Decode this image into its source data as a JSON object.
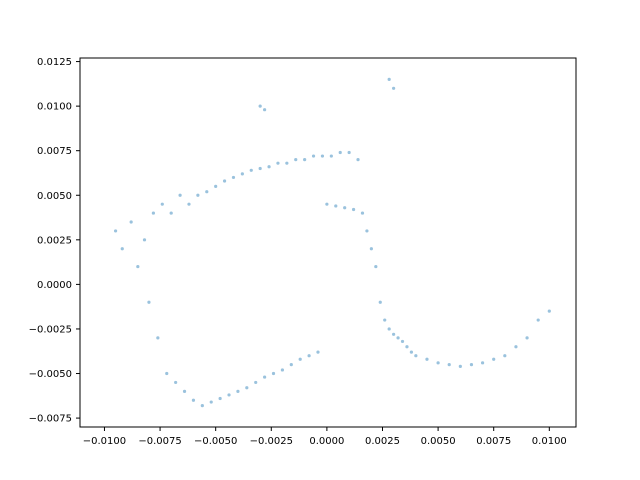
{
  "chart_data": {
    "type": "scatter",
    "title": "",
    "xlabel": "",
    "ylabel": "",
    "xlim": [
      -0.0111,
      0.0112
    ],
    "ylim": [
      -0.008,
      0.0127
    ],
    "xticks": [
      -0.01,
      -0.0075,
      -0.005,
      -0.0025,
      0.0,
      0.0025,
      0.005,
      0.0075,
      0.01
    ],
    "xtick_labels": [
      "−0.0100",
      "−0.0075",
      "−0.0050",
      "−0.0025",
      "0.0000",
      "0.0025",
      "0.0050",
      "0.0075",
      "0.0100"
    ],
    "yticks": [
      -0.0075,
      -0.005,
      -0.0025,
      0.0,
      0.0025,
      0.005,
      0.0075,
      0.01,
      0.0125
    ],
    "ytick_labels": [
      "−0.0075",
      "−0.0050",
      "−0.0025",
      "0.0000",
      "0.0025",
      "0.0050",
      "0.0075",
      "0.0100",
      "0.0125"
    ],
    "grid": false,
    "legend": "none",
    "marker_color": "#1f77b4",
    "marker_alpha": 0.45,
    "series": [
      {
        "description_points": "representative subset of the point cloud, in data units",
        "x": [
          -0.0095,
          -0.0092,
          -0.0088,
          -0.0085,
          -0.0082,
          -0.008,
          -0.0078,
          -0.0076,
          -0.0074,
          -0.0072,
          -0.007,
          -0.0068,
          -0.0066,
          -0.0064,
          -0.0062,
          -0.006,
          -0.0058,
          -0.0056,
          -0.0054,
          -0.0052,
          -0.005,
          -0.0048,
          -0.0046,
          -0.0044,
          -0.0042,
          -0.004,
          -0.0038,
          -0.0036,
          -0.0034,
          -0.0032,
          -0.003,
          -0.0028,
          -0.0026,
          -0.0024,
          -0.0022,
          -0.002,
          -0.0018,
          -0.0016,
          -0.0014,
          -0.0012,
          -0.001,
          -0.0008,
          -0.0006,
          -0.0004,
          -0.0002,
          0.0,
          0.0002,
          0.0004,
          0.0006,
          0.0008,
          0.001,
          0.0012,
          0.0014,
          0.0016,
          0.0018,
          0.002,
          0.0022,
          0.0024,
          0.0026,
          0.0028,
          0.003,
          0.0032,
          0.0034,
          0.0036,
          0.0038,
          0.004,
          0.0045,
          0.005,
          0.0055,
          0.006,
          0.0065,
          0.007,
          0.0075,
          0.008,
          0.0085,
          0.009,
          0.0095,
          0.01,
          -0.003,
          -0.0028,
          0.0028,
          0.003
        ],
        "y": [
          0.003,
          0.002,
          0.0035,
          0.001,
          0.0025,
          -0.001,
          0.004,
          -0.003,
          0.0045,
          -0.005,
          0.004,
          -0.0055,
          0.005,
          -0.006,
          0.0045,
          -0.0065,
          0.005,
          -0.0068,
          0.0052,
          -0.0066,
          0.0055,
          -0.0064,
          0.0058,
          -0.0062,
          0.006,
          -0.006,
          0.0062,
          -0.0058,
          0.0064,
          -0.0055,
          0.0065,
          -0.0052,
          0.0066,
          -0.005,
          0.0068,
          -0.0048,
          0.0068,
          -0.0045,
          0.007,
          -0.0042,
          0.007,
          -0.004,
          0.0072,
          -0.0038,
          0.0072,
          0.0045,
          0.0072,
          0.0044,
          0.0074,
          0.0043,
          0.0074,
          0.0042,
          0.007,
          0.004,
          0.003,
          0.002,
          0.001,
          -0.001,
          -0.002,
          -0.0025,
          -0.0028,
          -0.003,
          -0.0032,
          -0.0035,
          -0.0038,
          -0.004,
          -0.0042,
          -0.0044,
          -0.0045,
          -0.0046,
          -0.0045,
          -0.0044,
          -0.0042,
          -0.004,
          -0.0035,
          -0.003,
          -0.002,
          -0.0015,
          0.01,
          0.0098,
          0.0115,
          0.011
        ]
      }
    ]
  }
}
